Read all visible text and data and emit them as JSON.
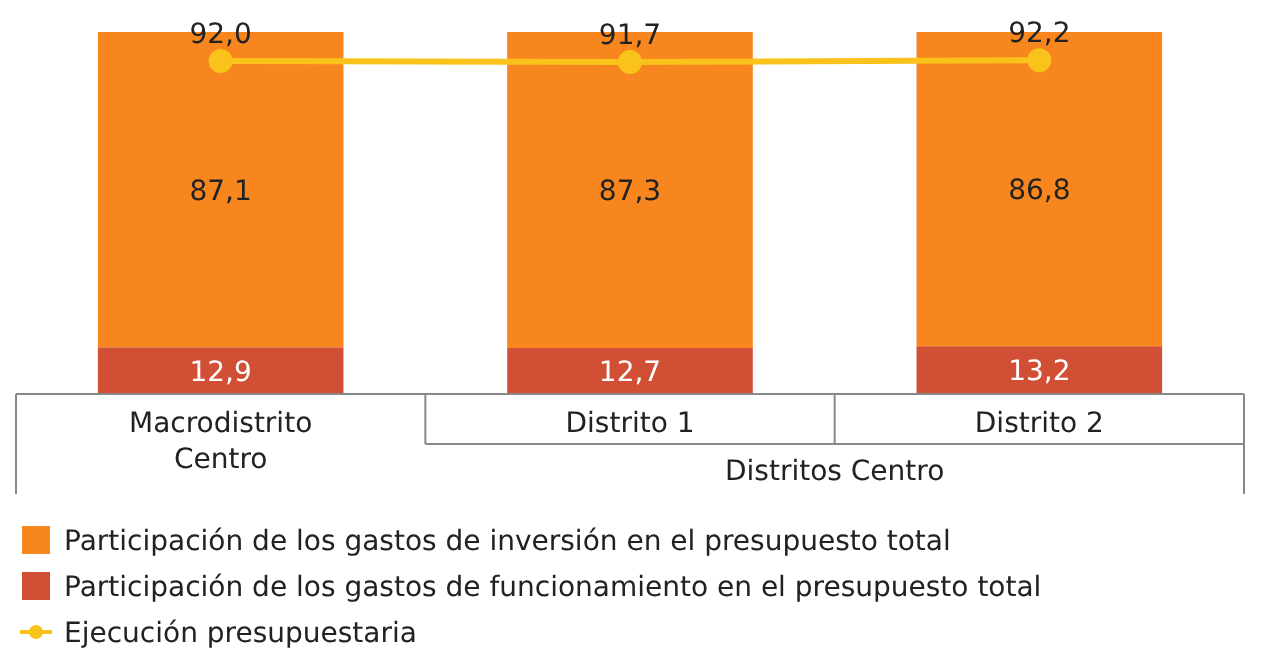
{
  "chart_data": {
    "type": "bar",
    "stacked": true,
    "ylim": [
      0,
      100
    ],
    "categories": [
      "Macrodistrito Centro",
      "Distrito 1",
      "Distrito 2"
    ],
    "series": [
      {
        "name": "Participación de los gastos de funcionamiento en el presupuesto total",
        "color": "#d14f35",
        "values": [
          12.9,
          12.7,
          13.2
        ],
        "value_labels": [
          "12,9",
          "12,7",
          "13,2"
        ]
      },
      {
        "name": "Participación de los gastos de inversión en el presupuesto total",
        "color": "#f7861f",
        "values": [
          87.1,
          87.3,
          86.8
        ],
        "value_labels": [
          "87,1",
          "87,3",
          "86,8"
        ]
      },
      {
        "name": "Ejecución presupuestaria",
        "type": "line",
        "color": "#f9c31b",
        "marker": "circle",
        "values": [
          92.0,
          91.7,
          92.2
        ],
        "value_labels": [
          "92,0",
          "91,7",
          "92,2"
        ]
      }
    ],
    "annotations": [
      "Distritos Centro"
    ],
    "legend": "bottom",
    "tick_labels": "x"
  }
}
